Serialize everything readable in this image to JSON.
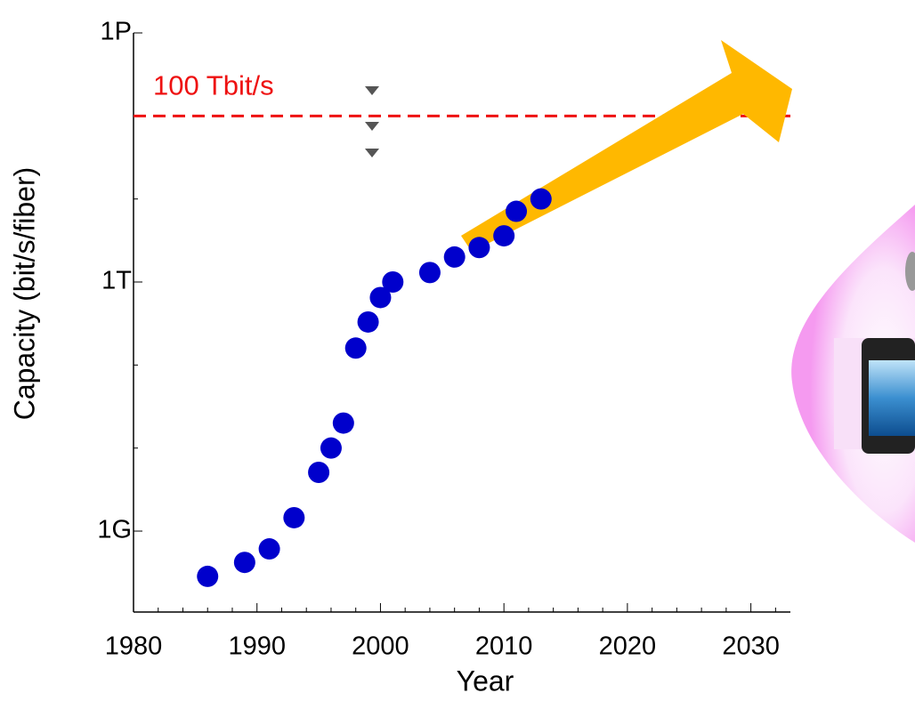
{
  "chart_data": {
    "type": "scatter",
    "x_label": "Year",
    "y_label": "Capacity (bit/s/fiber)",
    "x": [
      1986,
      1989,
      1991,
      1993,
      1995,
      1996,
      1997,
      1998,
      1999,
      2000,
      2001,
      2004,
      2006,
      2008,
      2010,
      2011,
      2013
    ],
    "values": [
      285000000,
      420000000,
      610000000,
      1450000000,
      5100000000,
      10000000000,
      20000000000,
      160000000000,
      330000000000,
      650000000000,
      1000000000000,
      1300000000000,
      2000000000000,
      2600000000000,
      3600000000000,
      7100000000000,
      10000000000000
    ],
    "color": "#0000cc",
    "log_y": true,
    "xlim": [
      1980,
      2033.2
    ],
    "ylim": [
      106000000,
      1000000000000000
    ],
    "xticks": [
      1980,
      1990,
      2000,
      2010,
      2020,
      2030
    ],
    "xminorticks": [
      1982,
      1984,
      1986,
      1988,
      1992,
      1994,
      1996,
      1998,
      2002,
      2004,
      2006,
      2008,
      2012,
      2014,
      2016,
      2018,
      2022,
      2024,
      2026,
      2028,
      2032
    ],
    "yticks": [
      {
        "value": 1000000000,
        "label": "1G"
      },
      {
        "value": 1000000000000,
        "label": "1T"
      },
      {
        "value": 1000000000000000,
        "label": "1P"
      }
    ],
    "yminorticks": [
      10000000000,
      100000000000,
      10000000000000,
      100000000000000
    ],
    "reference_line": {
      "value": 100000000000000,
      "label": "100 Tbit/s",
      "color": "#ee1111"
    }
  }
}
